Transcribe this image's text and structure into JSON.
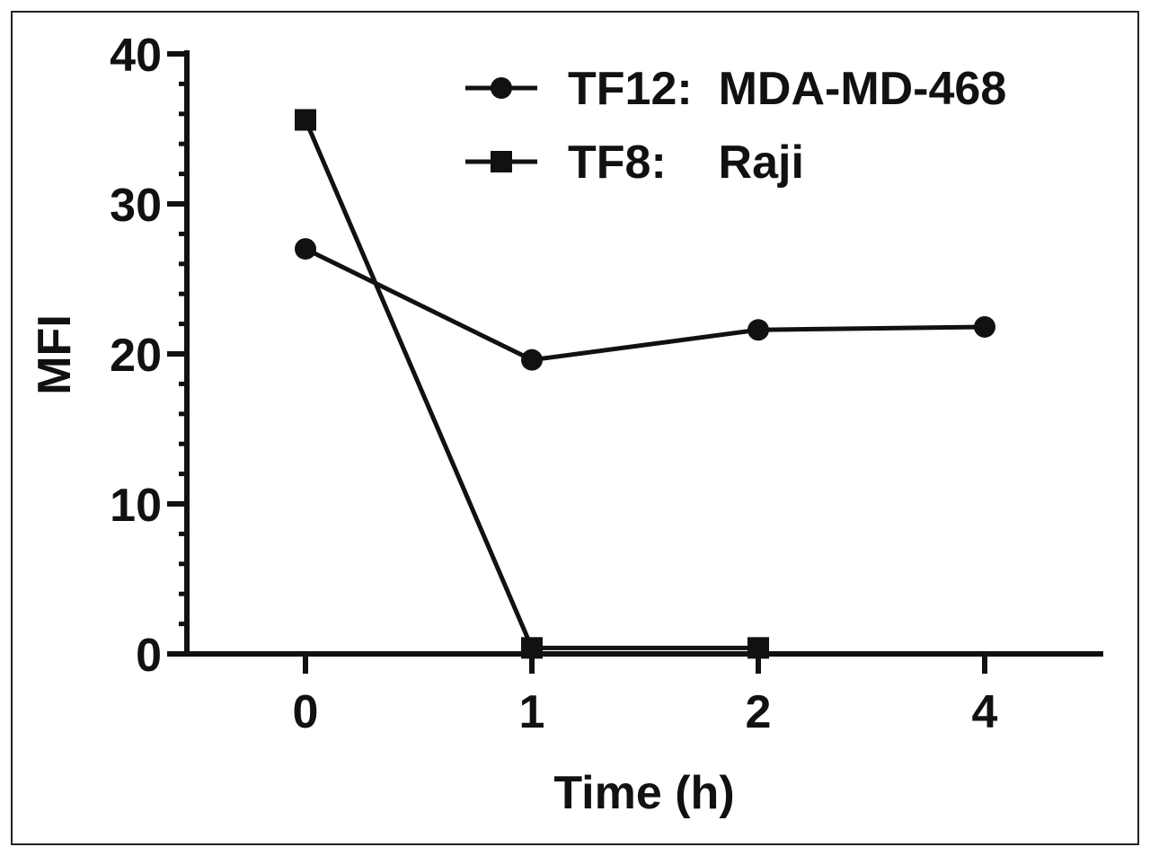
{
  "chart_data": {
    "type": "line",
    "x_categories": [
      "0",
      "1",
      "2",
      "4"
    ],
    "xlabel": "Time (h)",
    "ylabel": "MFI",
    "ylim": [
      0,
      40
    ],
    "yticks": [
      "0",
      "10",
      "20",
      "30",
      "40"
    ],
    "grid": false,
    "legend_position": "top-right",
    "series": [
      {
        "name": "TF12:  MDA-MD-468",
        "marker": "circle",
        "x": [
          "0",
          "1",
          "2",
          "4"
        ],
        "values": [
          27.0,
          19.6,
          21.6,
          21.8
        ]
      },
      {
        "name": "TF8:    Raji",
        "marker": "square",
        "x": [
          "0",
          "1",
          "2"
        ],
        "values": [
          35.6,
          0.4,
          0.4
        ]
      }
    ]
  }
}
